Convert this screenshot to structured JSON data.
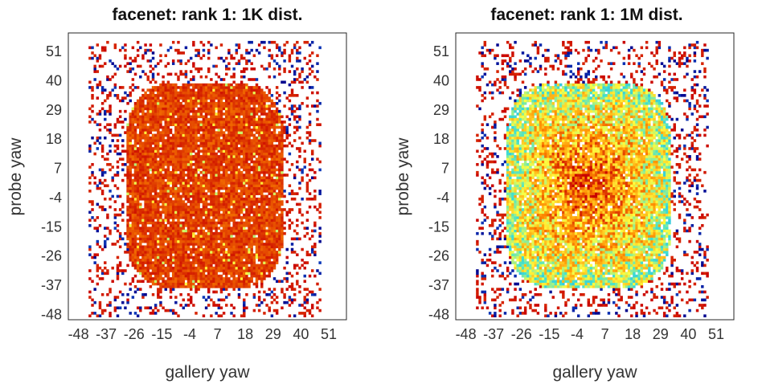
{
  "colors": {
    "low": "#00008b",
    "mid_low": "#1e90ff",
    "mid": "#40e0d0",
    "mid_high": "#ffff40",
    "high_mid": "#ff8c00",
    "high": "#c80000"
  },
  "chart_data": [
    {
      "type": "heatmap",
      "title": "facenet: rank 1: 1K dist.",
      "xlabel": "gallery yaw",
      "ylabel": "probe yaw",
      "x_ticks": [
        "-48",
        "-37",
        "-26",
        "-15",
        "-4",
        "7",
        "18",
        "29",
        "40",
        "51"
      ],
      "y_ticks": [
        "51",
        "40",
        "29",
        "18",
        "7",
        "-4",
        "-15",
        "-26",
        "-37",
        "-48"
      ],
      "x_range": [
        -52,
        58
      ],
      "y_range": [
        -50,
        58
      ],
      "grid": false,
      "value_range": [
        0,
        1
      ],
      "dense_region": {
        "x": [
          -30,
          33
        ],
        "y": [
          -38,
          40
        ],
        "typical_value": 0.97
      },
      "sparse_region": {
        "x": [
          -44,
          47
        ],
        "y": [
          -48,
          55
        ]
      },
      "colormap": "jet"
    },
    {
      "type": "heatmap",
      "title": "facenet: rank 1: 1M dist.",
      "xlabel": "gallery yaw",
      "ylabel": "probe yaw",
      "x_ticks": [
        "-48",
        "-37",
        "-26",
        "-15",
        "-4",
        "7",
        "18",
        "29",
        "40",
        "51"
      ],
      "y_ticks": [
        "51",
        "40",
        "29",
        "18",
        "7",
        "-4",
        "-15",
        "-26",
        "-37",
        "-48"
      ],
      "x_range": [
        -52,
        58
      ],
      "y_range": [
        -50,
        58
      ],
      "grid": false,
      "value_range": [
        0,
        1
      ],
      "dense_region": {
        "x": [
          -33,
          33
        ],
        "y": [
          -38,
          40
        ],
        "typical_value": 0.78
      },
      "sparse_region": {
        "x": [
          -44,
          47
        ],
        "y": [
          -48,
          55
        ]
      },
      "colormap": "jet"
    }
  ]
}
